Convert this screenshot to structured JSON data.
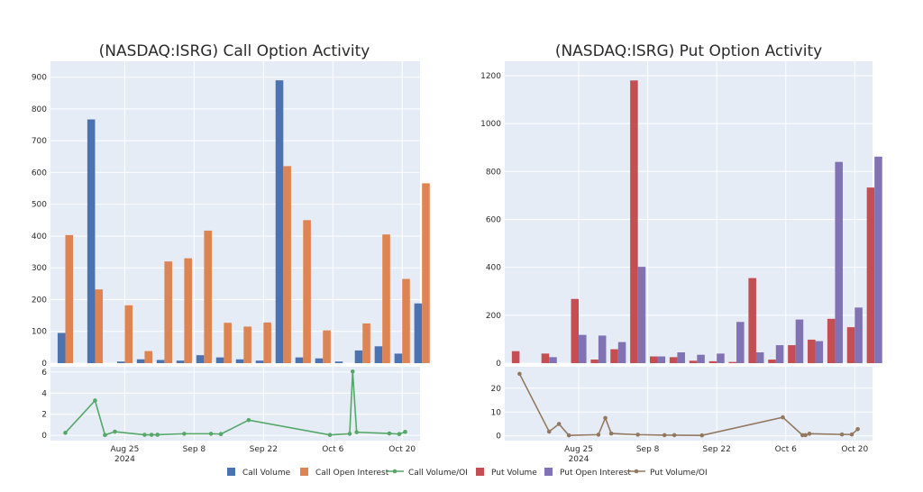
{
  "chart_data": [
    {
      "type": "bar",
      "title": "(NASDAQ:ISRG) Call Option Activity",
      "series": [
        {
          "name": "Call Volume",
          "color": "#4c72b0",
          "values": [
            [
              0,
              95
            ],
            [
              3,
              767
            ],
            [
              6,
              5
            ],
            [
              8,
              12
            ],
            [
              10,
              10
            ],
            [
              12,
              8
            ],
            [
              14,
              25
            ],
            [
              16,
              18
            ],
            [
              18,
              12
            ],
            [
              20,
              8
            ],
            [
              22,
              890
            ],
            [
              24,
              18
            ],
            [
              26,
              15
            ],
            [
              28,
              5
            ],
            [
              30,
              40
            ],
            [
              32,
              53
            ],
            [
              34,
              30
            ],
            [
              36,
              188
            ]
          ]
        },
        {
          "name": "Call Open Interest",
          "color": "#dd8452",
          "values": [
            [
              0,
              403
            ],
            [
              3,
              232
            ],
            [
              6,
              182
            ],
            [
              8,
              38
            ],
            [
              10,
              320
            ],
            [
              12,
              330
            ],
            [
              14,
              417
            ],
            [
              16,
              127
            ],
            [
              18,
              115
            ],
            [
              20,
              128
            ],
            [
              22,
              620
            ],
            [
              24,
              450
            ],
            [
              26,
              103
            ],
            [
              30,
              125
            ],
            [
              32,
              405
            ],
            [
              34,
              265
            ],
            [
              36,
              566
            ]
          ]
        }
      ],
      "ylim": [
        0,
        950
      ],
      "yticks": [
        0,
        100,
        200,
        300,
        400,
        500,
        600,
        700,
        800,
        900
      ]
    },
    {
      "type": "line",
      "series": [
        {
          "name": "Call Volume/OI",
          "color": "#55a868",
          "values": [
            [
              0,
              0.24
            ],
            [
              3,
              3.3
            ],
            [
              4,
              0.03
            ],
            [
              5,
              0.35
            ],
            [
              8,
              0.05
            ],
            [
              8.7,
              0.05
            ],
            [
              9.3,
              0.06
            ],
            [
              12,
              0.15
            ],
            [
              14.7,
              0.15
            ],
            [
              15.7,
              0.12
            ],
            [
              18.5,
              1.45
            ],
            [
              26.7,
              0.04
            ],
            [
              28.7,
              0.15
            ],
            [
              29,
              6.05
            ],
            [
              29.4,
              0.3
            ],
            [
              32.7,
              0.18
            ],
            [
              33.7,
              0.12
            ],
            [
              34.3,
              0.33
            ]
          ]
        }
      ],
      "ylim": [
        -0.5,
        6.5
      ],
      "yticks": [
        0,
        2,
        4,
        6
      ]
    },
    {
      "type": "bar",
      "title": "(NASDAQ:ISRG) Put Option Activity",
      "series": [
        {
          "name": "Put Volume",
          "color": "#c44e52",
          "values": [
            [
              0,
              50
            ],
            [
              3,
              40
            ],
            [
              6,
              268
            ],
            [
              8,
              15
            ],
            [
              10,
              58
            ],
            [
              12,
              1180
            ],
            [
              14,
              28
            ],
            [
              16,
              25
            ],
            [
              18,
              10
            ],
            [
              20,
              8
            ],
            [
              22,
              5
            ],
            [
              24,
              355
            ],
            [
              26,
              15
            ],
            [
              28,
              75
            ],
            [
              30,
              98
            ],
            [
              32,
              185
            ],
            [
              34,
              150
            ],
            [
              36,
              733
            ]
          ]
        },
        {
          "name": "Put Open Interest",
          "color": "#8172b3",
          "values": [
            [
              3,
              25
            ],
            [
              6,
              118
            ],
            [
              8,
              115
            ],
            [
              10,
              88
            ],
            [
              12,
              402
            ],
            [
              14,
              28
            ],
            [
              16,
              45
            ],
            [
              18,
              35
            ],
            [
              20,
              40
            ],
            [
              22,
              172
            ],
            [
              24,
              45
            ],
            [
              26,
              75
            ],
            [
              28,
              182
            ],
            [
              30,
              92
            ],
            [
              32,
              840
            ],
            [
              34,
              232
            ],
            [
              36,
              862
            ]
          ]
        }
      ],
      "ylim": [
        0,
        1260
      ],
      "yticks": [
        0,
        200,
        400,
        600,
        800,
        1000,
        1200
      ]
    },
    {
      "type": "line",
      "series": [
        {
          "name": "Put Volume/OI",
          "color": "#937860",
          "values": [
            [
              0,
              26
            ],
            [
              3,
              1.8
            ],
            [
              4,
              5
            ],
            [
              5,
              0.2
            ],
            [
              8,
              0.5
            ],
            [
              8.7,
              7.5
            ],
            [
              9.3,
              1
            ],
            [
              12,
              0.5
            ],
            [
              14.7,
              0.3
            ],
            [
              15.7,
              0.3
            ],
            [
              18.5,
              0.2
            ],
            [
              26.7,
              7.8
            ],
            [
              28.7,
              0.3
            ],
            [
              29,
              0.3
            ],
            [
              29.4,
              0.9
            ],
            [
              32.7,
              0.6
            ],
            [
              33.7,
              0.6
            ],
            [
              34.3,
              2.8
            ]
          ]
        }
      ],
      "ylim": [
        -2,
        29
      ],
      "yticks": [
        0,
        10,
        20
      ]
    }
  ],
  "xaxis": {
    "ticks": [
      {
        "x": 6,
        "label": "Aug 25"
      },
      {
        "x": 13,
        "label": "Sep 8"
      },
      {
        "x": 20,
        "label": "Sep 22"
      },
      {
        "x": 27,
        "label": "Oct 6"
      },
      {
        "x": 34,
        "label": "Oct 20"
      }
    ],
    "year_label": "2024",
    "xlim": [
      -1.5,
      35.8
    ]
  },
  "legend": [
    {
      "name": "Call Volume",
      "kind": "bar",
      "color": "#4c72b0"
    },
    {
      "name": "Call Open Interest",
      "kind": "bar",
      "color": "#dd8452"
    },
    {
      "name": "Call Volume/OI",
      "kind": "line",
      "color": "#55a868"
    },
    {
      "name": "Put Volume",
      "kind": "bar",
      "color": "#c44e52"
    },
    {
      "name": "Put Open Interest",
      "kind": "bar",
      "color": "#8172b3"
    },
    {
      "name": "Put Volume/OI",
      "kind": "line",
      "color": "#937860"
    }
  ],
  "colors": {
    "plot_bg": "#e5ecf6",
    "grid": "#ffffff"
  }
}
